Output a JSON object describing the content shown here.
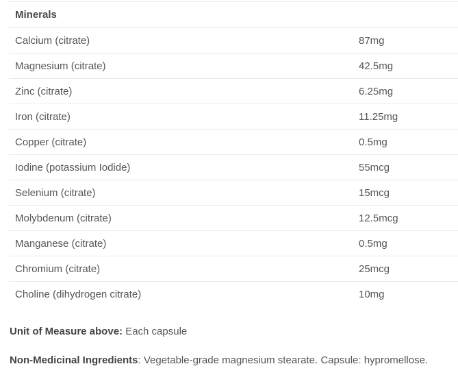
{
  "table": {
    "header": "Minerals",
    "rows": [
      {
        "name": "Calcium (citrate)",
        "amount": "87mg"
      },
      {
        "name": "Magnesium (citrate)",
        "amount": "42.5mg"
      },
      {
        "name": "Zinc (citrate)",
        "amount": "6.25mg"
      },
      {
        "name": "Iron (citrate)",
        "amount": "11.25mg"
      },
      {
        "name": "Copper (citrate)",
        "amount": "0.5mg"
      },
      {
        "name": "Iodine (potassium Iodide)",
        "amount": "55mcg"
      },
      {
        "name": "Selenium (citrate)",
        "amount": "15mcg"
      },
      {
        "name": "Molybdenum (citrate)",
        "amount": "12.5mcg"
      },
      {
        "name": "Manganese (citrate)",
        "amount": "0.5mg"
      },
      {
        "name": "Chromium (citrate)",
        "amount": "25mcg"
      },
      {
        "name": "Choline (dihydrogen citrate)",
        "amount": "10mg"
      }
    ]
  },
  "notes": {
    "unit_label": "Unit of Measure above:",
    "unit_value": " Each capsule",
    "nonmedicinal_label": "Non-Medicinal Ingredients",
    "nonmedicinal_value": ": Vegetable-grade magnesium stearate. Capsule: hypromellose."
  },
  "colors": {
    "background": "#ffffff",
    "body_text": "#555555",
    "heading_text": "#4a4a4a",
    "divider": "#ebebeb"
  }
}
